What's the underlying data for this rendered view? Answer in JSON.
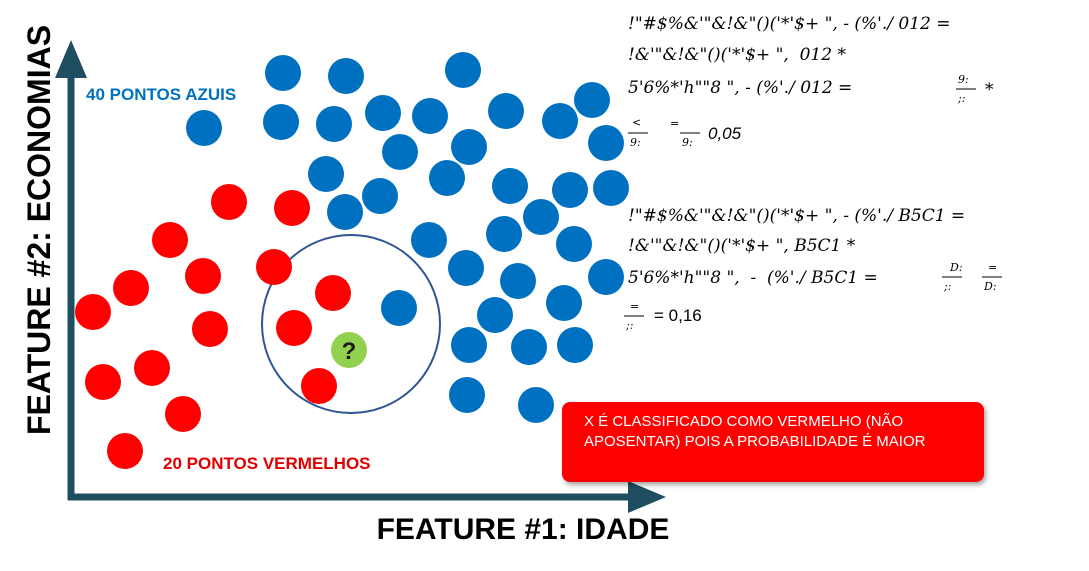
{
  "axes": {
    "x_label": "FEATURE #1: IDADE",
    "y_label": "FEATURE #2: ECONOMIAS",
    "axis_color": "#1f4e60"
  },
  "labels": {
    "blue_count": "40 PONTOS AZUIS",
    "red_count": "20 PONTOS VERMELHOS",
    "unknown_point": "?"
  },
  "colors": {
    "blue_point": "#0070c0",
    "red_point": "#ff0000",
    "unknown_point": "#92d050",
    "neighborhood_circle": "#2f5597",
    "blue_text": "#0070c0",
    "red_text": "#e00000"
  },
  "formulas": {
    "blue": {
      "line1": "!\"#$%&'\"&!&\"()('*'$+ \", - (%'./ 012 =",
      "line2": "!&'\"&!&\"()('*'$+ \",  012 *",
      "line3": "5'6%*'h\"\"8 \", - (%'./ 012 =",
      "frac3_num": "9:",
      "frac3_den": ";:",
      "line3_tail": "*",
      "line4_lead": "<",
      "line4_den": "9:",
      "line4_mid": "=",
      "line4_den2": "9:",
      "result": "0,05"
    },
    "red": {
      "line1": "!\"#$%&'\"&!&\"()('*'$+ \", - (%'./ B5C1 =",
      "line2": "!&'\"&!&\"()('*'$+ \", B5C1 *",
      "line3": "5'6%*'h\"\"8 \",  -  (%'./ B5C1 =",
      "frac3_num": "D:",
      "frac3_den": ";:",
      "frac3b_num": "=",
      "frac3b_den": "D:",
      "line4_num": "=",
      "line4_den": ";:",
      "result": "= 0,16"
    }
  },
  "result_box": {
    "text": "X É CLASSIFICADO COMO VERMELHO (NÃO APOSENTAR) POIS A PROBABILIDADE É MAIOR",
    "background": "#ff0000",
    "text_color": "#ffffff"
  }
}
